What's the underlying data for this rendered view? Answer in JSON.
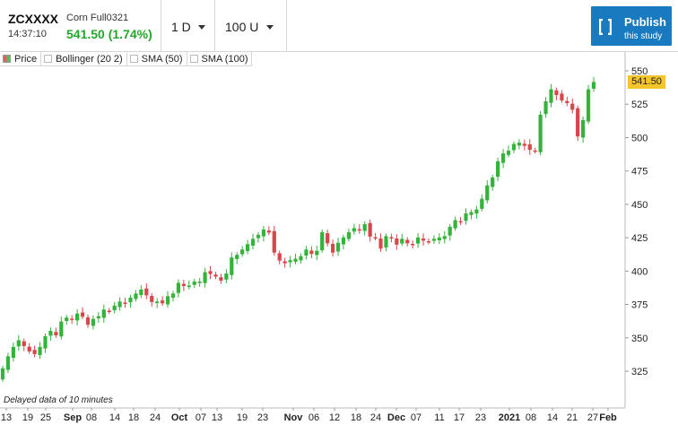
{
  "header": {
    "symbol": "ZCXXXX",
    "name": "Corn Full0321",
    "time": "14:37:10",
    "price_change": "541.50 (1.74%)",
    "interval": "1 D",
    "count": "100 U",
    "publish_main": "Publish",
    "publish_sub": "this study",
    "publish_icon": "bracket-icon"
  },
  "legend": {
    "price": "Price",
    "bollinger": "Bollinger (20 2)",
    "sma50": "SMA (50)",
    "sma100": "SMA (100)"
  },
  "current_price": "541.50",
  "note": "Delayed data of 10 minutes",
  "colors": {
    "up": "#33b33a",
    "down": "#d8464b",
    "accent": "#1a7ac0",
    "price_price_badge": "#f5c52e"
  },
  "chart_data": {
    "type": "candlestick",
    "y_ticks": [
      "550",
      "525",
      "500",
      "475",
      "450",
      "425",
      "400",
      "375",
      "350",
      "325"
    ],
    "ylim": [
      305,
      555
    ],
    "x_tick_labels": [
      "13",
      "19",
      "25",
      "Sep",
      "08",
      "14",
      "18",
      "24",
      "Oct",
      "07",
      "13",
      "19",
      "23",
      "Nov",
      "06",
      "12",
      "18",
      "24",
      "Dec",
      "07",
      "11",
      "17",
      "23",
      "2021",
      "08",
      "14",
      "21",
      "27",
      "Feb"
    ],
    "closes": [
      327,
      336,
      343,
      348,
      344,
      340,
      338,
      343,
      351,
      355,
      352,
      362,
      365,
      364,
      368,
      366,
      360,
      364,
      366,
      371,
      370,
      374,
      377,
      376,
      380,
      383,
      386,
      382,
      377,
      377,
      376,
      381,
      383,
      391,
      389,
      389,
      392,
      392,
      399,
      398,
      396,
      393,
      398,
      410,
      412,
      416,
      420,
      424,
      427,
      431,
      429,
      414,
      408,
      406,
      408,
      409,
      411,
      416,
      413,
      415,
      429,
      421,
      414,
      421,
      425,
      429,
      432,
      431,
      435,
      426,
      425,
      417,
      426,
      425,
      420,
      424,
      421,
      420,
      425,
      423,
      422,
      424,
      425,
      426,
      433,
      438,
      437,
      443,
      444,
      446,
      454,
      464,
      470,
      482,
      488,
      490,
      495,
      496,
      494,
      491,
      490,
      517,
      527,
      536,
      532,
      528,
      526,
      521,
      501,
      513,
      536,
      541.5
    ]
  }
}
